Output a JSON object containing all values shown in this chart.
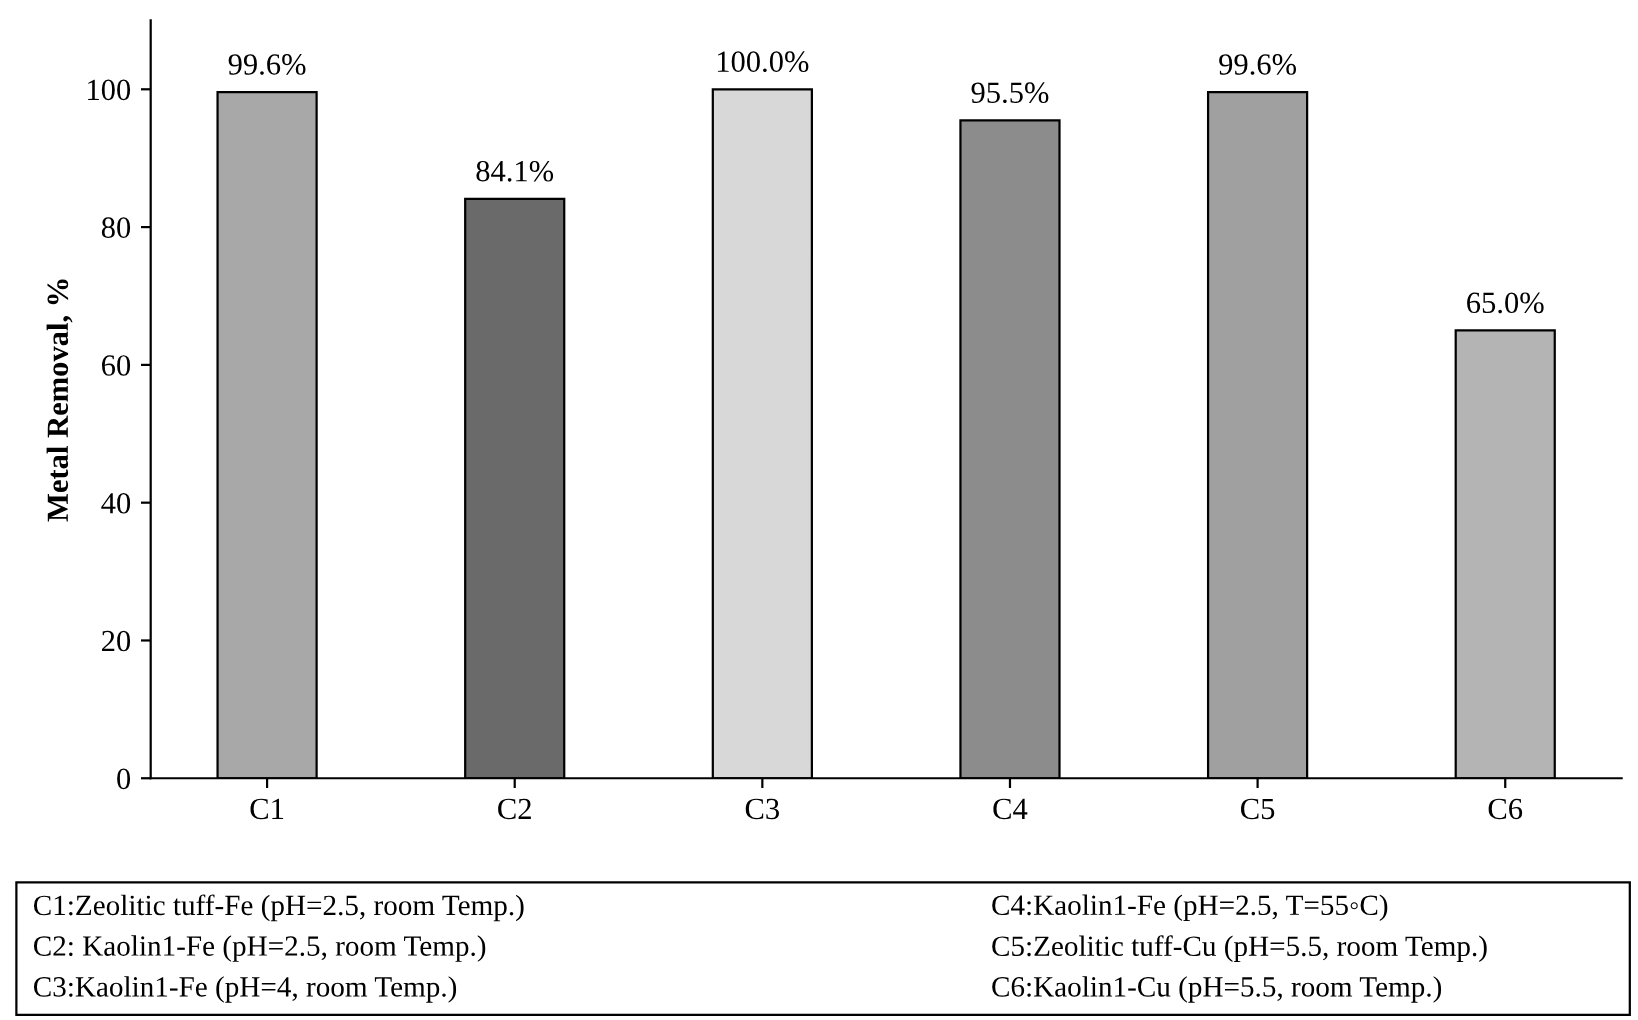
{
  "chart_data": {
    "type": "bar",
    "ylabel": "Metal Removal, %",
    "categories": [
      "C1",
      "C2",
      "C3",
      "C4",
      "C5",
      "C6"
    ],
    "values": [
      99.6,
      84.1,
      100.0,
      95.5,
      99.6,
      65.0
    ],
    "value_labels": [
      "99.6%",
      "84.1%",
      "100.0%",
      "95.5%",
      "99.6%",
      "65.0%"
    ],
    "colors": [
      "#a8a8a8",
      "#6a6a6a",
      "#d8d8d8",
      "#8c8c8c",
      "#a0a0a0",
      "#b4b4b4"
    ],
    "ylim": [
      0,
      110
    ],
    "yticks": [
      0,
      20,
      40,
      60,
      80,
      100
    ],
    "grid": false,
    "legend": false,
    "annotations": [
      "C1:Zeolitic tuff-Fe (pH=2.5, room Temp.)",
      "C2: Kaolin1-Fe (pH=2.5, room Temp.)",
      "C3:Kaolin1-Fe (pH=4, room Temp.)",
      "C4:Kaolin1-Fe (pH=2.5, T=55◦C)",
      "C5:Zeolitic tuff-Cu (pH=5.5, room Temp.)",
      "C6:Kaolin1-Cu (pH=5.5, room Temp.)"
    ]
  }
}
